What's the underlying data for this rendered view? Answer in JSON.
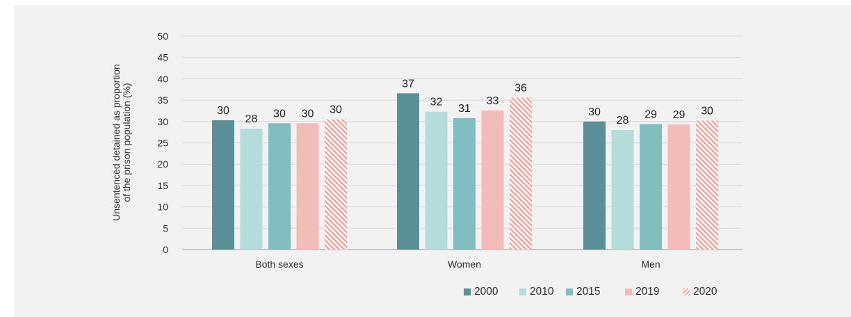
{
  "chart_data": {
    "type": "bar",
    "ylabel_lines": [
      "Unsentenced detained as proportion",
      "of the prison population (%)"
    ],
    "ylim": [
      0,
      50
    ],
    "yticks": [
      0,
      5,
      10,
      15,
      20,
      25,
      30,
      35,
      40,
      45,
      50
    ],
    "grid": true,
    "legend_position": "bottom-right",
    "categories": [
      "Both sexes",
      "Women",
      "Men"
    ],
    "series": [
      {
        "name": "2000",
        "color": "#5a8f97",
        "values": [
          30.3,
          36.6,
          30.0
        ],
        "labels": [
          "30",
          "37",
          "30"
        ]
      },
      {
        "name": "2010",
        "color": "#b3dcdb",
        "values": [
          28.3,
          32.3,
          28.0
        ],
        "labels": [
          "28",
          "32",
          "28"
        ]
      },
      {
        "name": "2015",
        "color": "#80bcc0",
        "values": [
          29.6,
          30.8,
          29.4
        ],
        "labels": [
          "30",
          "31",
          "29"
        ]
      },
      {
        "name": "2019",
        "color": "#f2bcb9",
        "values": [
          29.6,
          32.6,
          29.3
        ],
        "labels": [
          "30",
          "33",
          "29"
        ]
      },
      {
        "name": "2020",
        "color": "#f0a6a0",
        "hatched": true,
        "values": [
          30.5,
          35.6,
          30.2
        ],
        "labels": [
          "30",
          "36",
          "30"
        ]
      }
    ]
  }
}
